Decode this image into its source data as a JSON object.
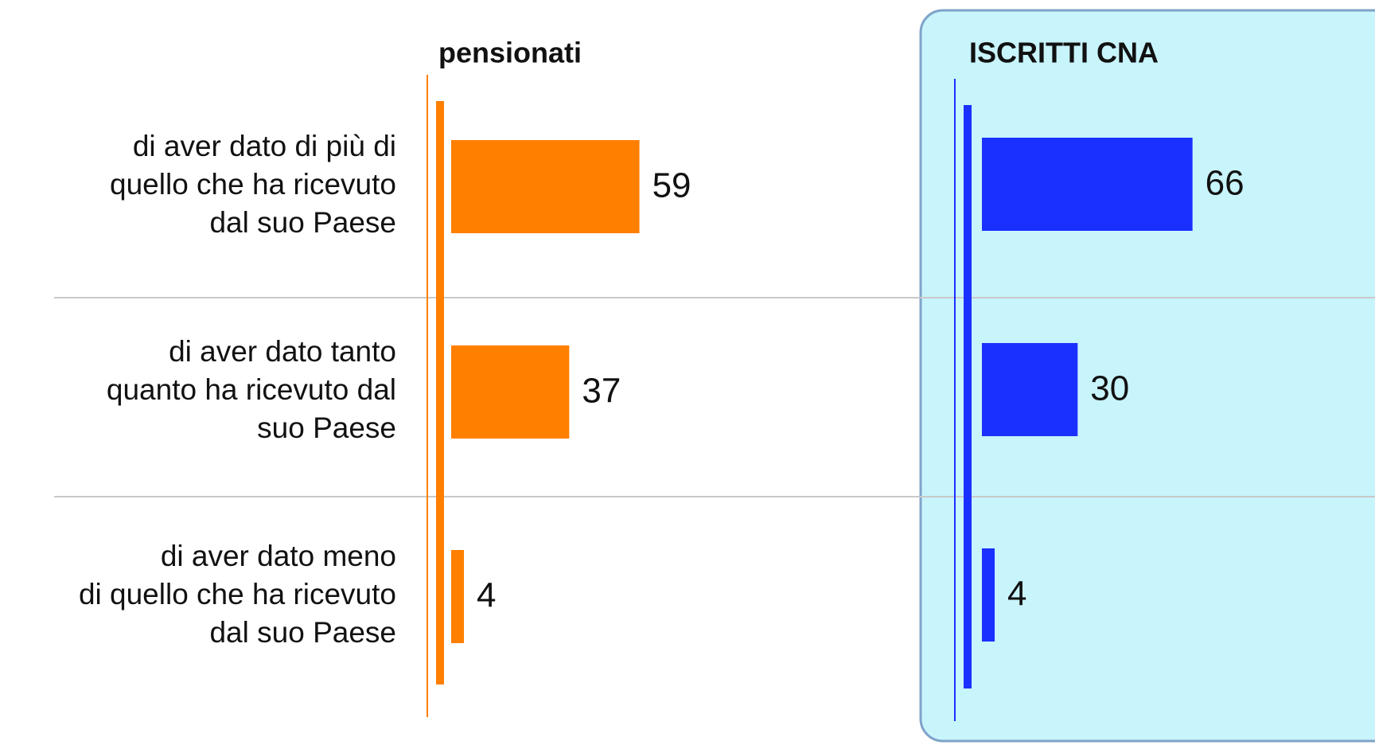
{
  "chart_data": {
    "type": "bar",
    "orientation": "horizontal",
    "categories": [
      [
        "di aver dato di più di",
        "quello che ha ricevuto",
        "dal suo Paese"
      ],
      [
        "di aver dato tanto",
        "quanto ha ricevuto dal",
        "suo Paese"
      ],
      [
        "di aver dato meno",
        "di quello che ha ricevuto",
        "dal suo Paese"
      ]
    ],
    "series": [
      {
        "name": "pensionati",
        "color": "#ff7f00",
        "values": [
          59,
          37,
          4
        ]
      },
      {
        "name": "ISCRITTI CNA",
        "color": "#1a30ff",
        "values": [
          66,
          30,
          4
        ]
      }
    ],
    "xlim": [
      0,
      100
    ]
  }
}
